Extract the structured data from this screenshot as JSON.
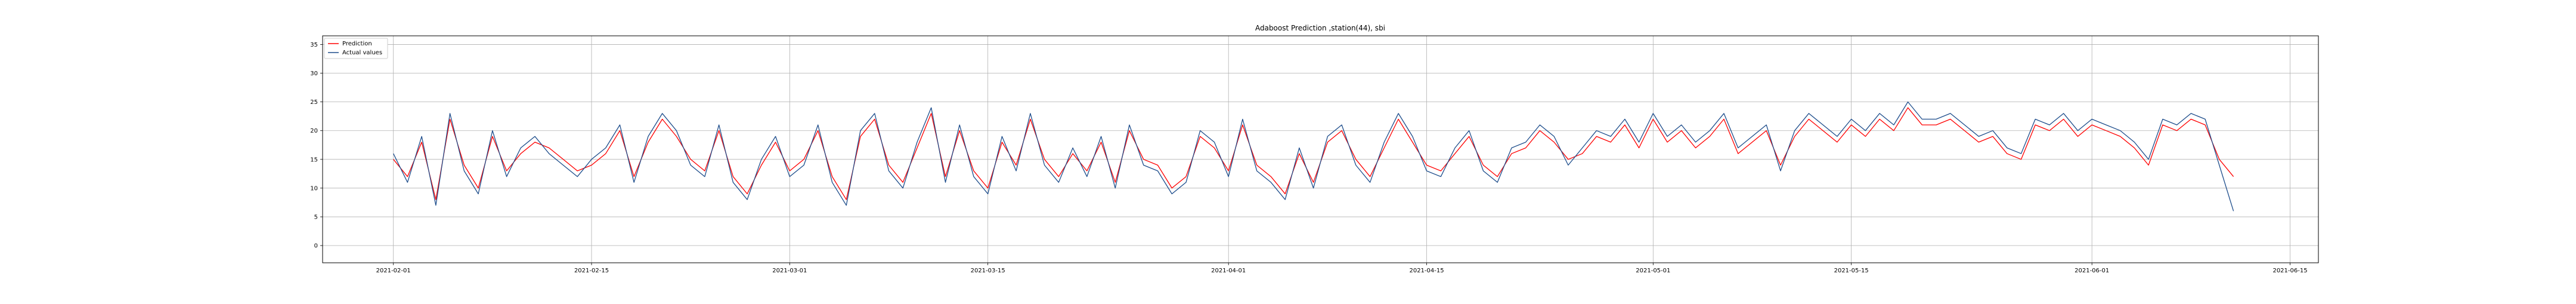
{
  "chart_data": {
    "type": "line",
    "title": "Adaboost Prediction ,station(44), sbi",
    "xlabel": "",
    "ylabel": "",
    "x_start": "2021-02-01",
    "x_end": "2021-06-10",
    "xlim": [
      "2021-01-27",
      "2021-06-17"
    ],
    "ylim": [
      -3,
      36.5
    ],
    "x_ticks": [
      "2021-02-01",
      "2021-02-15",
      "2021-03-01",
      "2021-03-15",
      "2021-04-01",
      "2021-04-15",
      "2021-05-01",
      "2021-05-15",
      "2021-06-01",
      "2021-06-15"
    ],
    "y_ticks": [
      0,
      5,
      10,
      15,
      20,
      25,
      30,
      35
    ],
    "grid": true,
    "legend": "top-left",
    "series": [
      {
        "name": "Prediction",
        "color": "#ff0000",
        "sample_every": "daily",
        "values": [
          15,
          12,
          18,
          8,
          22,
          14,
          10,
          19,
          13,
          16,
          18,
          17,
          15,
          13,
          14,
          16,
          20,
          12,
          18,
          22,
          19,
          15,
          13,
          20,
          12,
          9,
          14,
          18,
          13,
          15,
          20,
          12,
          8,
          19,
          22,
          14,
          11,
          17,
          23,
          12,
          20,
          13,
          10,
          18,
          14,
          22,
          15,
          12,
          16,
          13,
          18,
          11,
          20,
          15,
          14,
          10,
          12,
          19,
          17,
          13,
          21,
          14,
          12,
          9,
          16,
          11,
          18,
          20,
          15,
          12,
          17,
          22,
          18,
          14,
          13,
          16,
          19,
          14,
          12,
          16,
          17,
          20,
          18,
          15,
          16,
          19,
          18,
          21,
          17,
          22,
          18,
          20,
          17,
          19,
          22,
          16,
          18,
          20,
          14,
          19,
          22,
          20,
          18,
          21,
          19,
          22,
          20,
          24,
          21,
          21,
          22,
          20,
          18,
          19,
          16,
          15,
          21,
          20,
          22,
          19,
          21,
          20,
          19,
          17,
          14,
          21,
          20,
          22,
          21,
          15,
          12
        ]
      },
      {
        "name": "Actual values",
        "color": "#1f4e8c",
        "sample_every": "daily",
        "values": [
          16,
          11,
          19,
          7,
          23,
          13,
          9,
          20,
          12,
          17,
          19,
          16,
          14,
          12,
          15,
          17,
          21,
          11,
          19,
          23,
          20,
          14,
          12,
          21,
          11,
          8,
          15,
          19,
          12,
          14,
          21,
          11,
          7,
          20,
          23,
          13,
          10,
          18,
          24,
          11,
          21,
          12,
          9,
          19,
          13,
          23,
          14,
          11,
          17,
          12,
          19,
          10,
          21,
          14,
          13,
          9,
          11,
          20,
          18,
          12,
          22,
          13,
          11,
          8,
          17,
          10,
          19,
          21,
          14,
          11,
          18,
          23,
          19,
          13,
          12,
          17,
          20,
          13,
          11,
          17,
          18,
          21,
          19,
          14,
          17,
          20,
          19,
          22,
          18,
          23,
          19,
          21,
          18,
          20,
          23,
          17,
          19,
          21,
          13,
          20,
          23,
          21,
          19,
          22,
          20,
          23,
          21,
          25,
          22,
          22,
          23,
          21,
          19,
          20,
          17,
          16,
          22,
          21,
          23,
          20,
          22,
          21,
          20,
          18,
          15,
          22,
          21,
          23,
          22,
          14,
          6
        ]
      }
    ]
  }
}
